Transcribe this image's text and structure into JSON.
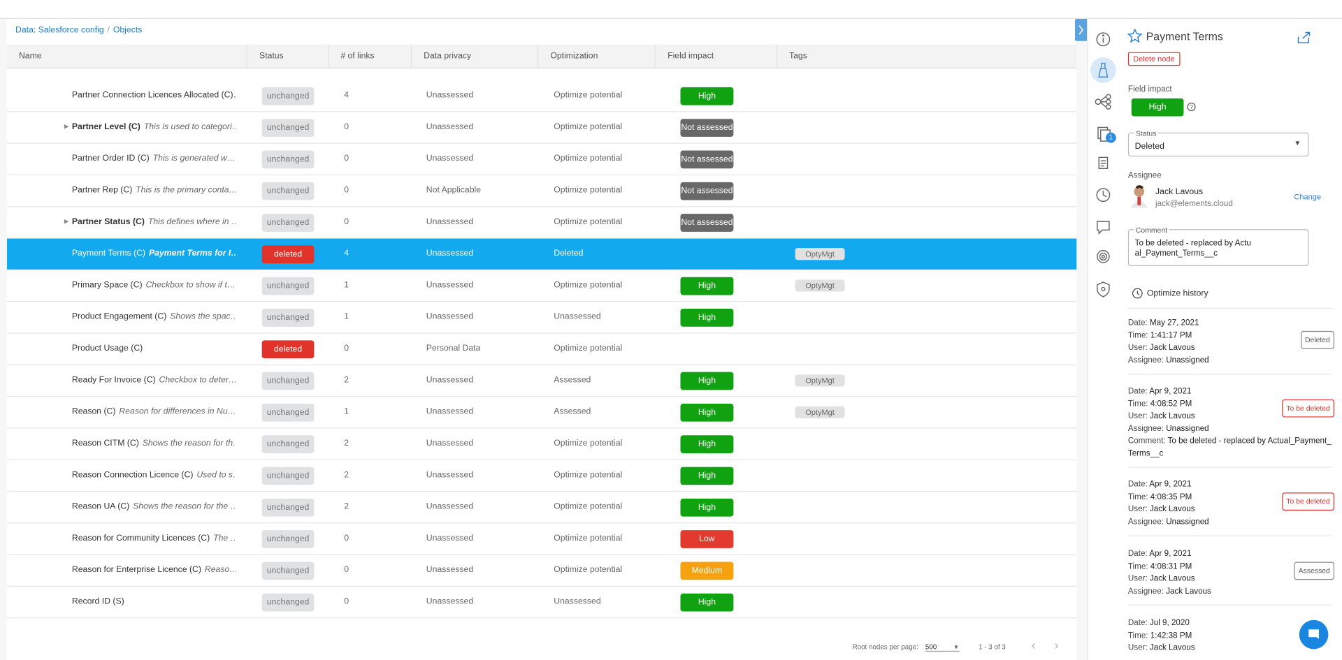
{
  "breadcrumb": [
    "Data: Salesforce config",
    "Objects"
  ],
  "table": {
    "columns": [
      "Name",
      "Status",
      "# of links",
      "Data privacy",
      "Optimization",
      "Field impact",
      "Tags"
    ],
    "status_colors": {
      "unchanged": "#dfe1e3",
      "deleted": "#e2332b"
    },
    "impact_colors": {
      "High": "#11a211",
      "Not assessed": "#686868",
      "Low": "#e23a2e",
      "Medium": "#f6a20e"
    },
    "selected_row": 5,
    "rows": [
      {
        "name": "Partner Connection Licences Allocated (C)…",
        "desc": "",
        "bold": false,
        "expand": false,
        "status": "unchanged",
        "links": 4,
        "privacy": "Unassessed",
        "optimization": "Optimize potential",
        "impact": "High",
        "tag": ""
      },
      {
        "name": "Partner Level (C)",
        "desc": "This is used to categori…",
        "bold": true,
        "expand": true,
        "status": "unchanged",
        "links": 0,
        "privacy": "Unassessed",
        "optimization": "Optimize potential",
        "impact": "Not assessed",
        "tag": ""
      },
      {
        "name": "Partner Order ID (C)",
        "desc": "This is generated w…",
        "bold": false,
        "expand": false,
        "status": "unchanged",
        "links": 0,
        "privacy": "Unassessed",
        "optimization": "Optimize potential",
        "impact": "Not assessed",
        "tag": ""
      },
      {
        "name": "Partner Rep (C)",
        "desc": "This is the primary conta…",
        "bold": false,
        "expand": false,
        "status": "unchanged",
        "links": 0,
        "privacy": "Not Applicable",
        "optimization": "Optimize potential",
        "impact": "Not assessed",
        "tag": ""
      },
      {
        "name": "Partner Status (C)",
        "desc": "This defines where in …",
        "bold": true,
        "expand": true,
        "status": "unchanged",
        "links": 0,
        "privacy": "Unassessed",
        "optimization": "Optimize potential",
        "impact": "Not assessed",
        "tag": ""
      },
      {
        "name": "Payment Terms (C)",
        "desc": "Payment Terms for I…",
        "bold": false,
        "expand": false,
        "status": "deleted",
        "links": 4,
        "privacy": "Unassessed",
        "optimization": "Deleted",
        "impact": "",
        "tag": "OptyMgt"
      },
      {
        "name": "Primary Space (C)",
        "desc": "Checkbox to show if t…",
        "bold": false,
        "expand": false,
        "status": "unchanged",
        "links": 1,
        "privacy": "Unassessed",
        "optimization": "Optimize potential",
        "impact": "High",
        "tag": "OptyMgt"
      },
      {
        "name": "Product Engagement (C)",
        "desc": "Shows the spac…",
        "bold": false,
        "expand": false,
        "status": "unchanged",
        "links": 1,
        "privacy": "Unassessed",
        "optimization": "Unassessed",
        "impact": "High",
        "tag": ""
      },
      {
        "name": "Product Usage (C)",
        "desc": "",
        "bold": false,
        "expand": false,
        "status": "deleted",
        "links": 0,
        "privacy": "Personal Data",
        "optimization": "Optimize potential",
        "impact": "",
        "tag": ""
      },
      {
        "name": "Ready For Invoice (C)",
        "desc": "Checkbox to deter…",
        "bold": false,
        "expand": false,
        "status": "unchanged",
        "links": 2,
        "privacy": "Unassessed",
        "optimization": "Assessed",
        "impact": "High",
        "tag": "OptyMgt"
      },
      {
        "name": "Reason (C)",
        "desc": "Reason for differences in Nu…",
        "bold": false,
        "expand": false,
        "status": "unchanged",
        "links": 1,
        "privacy": "Unassessed",
        "optimization": "Assessed",
        "impact": "High",
        "tag": "OptyMgt"
      },
      {
        "name": "Reason CITM (C)",
        "desc": "Shows the reason for th…",
        "bold": false,
        "expand": false,
        "status": "unchanged",
        "links": 2,
        "privacy": "Unassessed",
        "optimization": "Optimize potential",
        "impact": "High",
        "tag": ""
      },
      {
        "name": "Reason Connection Licence (C)",
        "desc": "Used to s…",
        "bold": false,
        "expand": false,
        "status": "unchanged",
        "links": 2,
        "privacy": "Unassessed",
        "optimization": "Optimize potential",
        "impact": "High",
        "tag": ""
      },
      {
        "name": "Reason UA (C)",
        "desc": "Shows the reason for the …",
        "bold": false,
        "expand": false,
        "status": "unchanged",
        "links": 2,
        "privacy": "Unassessed",
        "optimization": "Optimize potential",
        "impact": "High",
        "tag": ""
      },
      {
        "name": "Reason for Community Licences (C)",
        "desc": "The …",
        "bold": false,
        "expand": false,
        "status": "unchanged",
        "links": 0,
        "privacy": "Unassessed",
        "optimization": "Optimize potential",
        "impact": "Low",
        "tag": ""
      },
      {
        "name": "Reason for Enterprise Licence (C)",
        "desc": "Reaso…",
        "bold": false,
        "expand": false,
        "status": "unchanged",
        "links": 0,
        "privacy": "Unassessed",
        "optimization": "Optimize potential",
        "impact": "Medium",
        "tag": ""
      },
      {
        "name": "Record ID (S)",
        "desc": "",
        "bold": false,
        "expand": false,
        "status": "unchanged",
        "links": 0,
        "privacy": "Unassessed",
        "optimization": "Unassessed",
        "impact": "High",
        "tag": ""
      }
    ]
  },
  "pagination": {
    "label": "Root nodes per page:",
    "per_page": "500",
    "range": "1 - 3 of 3"
  },
  "rail": {
    "badge": "1"
  },
  "panel": {
    "title": "Payment Terms",
    "delete": "Delete node",
    "impact_label": "Field impact",
    "impact": "High",
    "status_label": "Status",
    "status": "Deleted",
    "assignee_label": "Assignee",
    "assignee_name": "Jack Lavous",
    "assignee_email": "jack@elements.cloud",
    "change": "Change",
    "comment_label": "Comment",
    "comment": "To be deleted - replaced by Actual_Payment_Terms__c",
    "history_title": "Optimize history",
    "history_labels": {
      "date": "Date:",
      "time": "Time:",
      "user": "User:",
      "assignee": "Assignee:",
      "comment": "Comment:"
    },
    "badge_colors": {
      "Deleted": "#888888",
      "To be deleted": "#e2332b",
      "Assessed": "#888888"
    },
    "history": [
      {
        "date": "May 27, 2021",
        "time": "1:41:17 PM",
        "user": "Jack Lavous",
        "assignee": "Unassigned",
        "comment": "",
        "badge": "Deleted"
      },
      {
        "date": "Apr 9, 2021",
        "time": "4:08:52 PM",
        "user": "Jack Lavous",
        "assignee": "Unassigned",
        "comment": "To be deleted - replaced by Actual_Payment_Terms__c",
        "badge": "To be deleted"
      },
      {
        "date": "Apr 9, 2021",
        "time": "4:08:35 PM",
        "user": "Jack Lavous",
        "assignee": "Unassigned",
        "comment": "",
        "badge": "To be deleted"
      },
      {
        "date": "Apr 9, 2021",
        "time": "4:08:31 PM",
        "user": "Jack Lavous",
        "assignee": "Jack Lavous",
        "comment": "",
        "badge": "Assessed"
      },
      {
        "date": "Jul 9, 2020",
        "time": "1:42:38 PM",
        "user": "Jack Lavous",
        "assignee": "",
        "comment": "",
        "badge": ""
      }
    ]
  }
}
